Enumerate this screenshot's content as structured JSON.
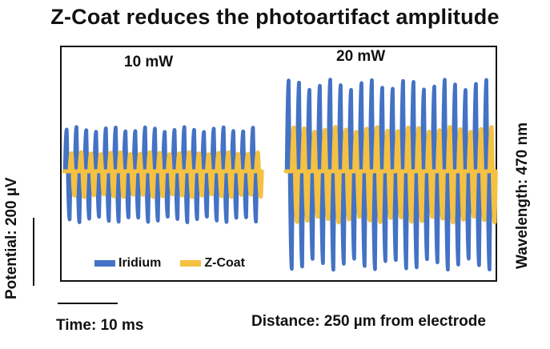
{
  "title": "Z-Coat reduces the photoartifact amplitude",
  "panels": {
    "left_label": "10 mW",
    "right_label": "20 mW"
  },
  "legend": {
    "iridium": "Iridium",
    "zcoat": "Z-Coat"
  },
  "scale_bars": {
    "potential": "Potential: 200 µV",
    "time": "Time: 10 ms"
  },
  "annotations": {
    "wavelength": "Wavelength: 470 nm",
    "distance": "Distance: 250 µm from electrode"
  },
  "colors": {
    "iridium": "#4472C4",
    "zcoat": "#F4C142"
  },
  "chart_data": {
    "type": "line",
    "title": "Z-Coat reduces the photoartifact amplitude",
    "xlabel": "",
    "ylabel": "",
    "grid": false,
    "legend_position": "bottom-left",
    "scale_bar_x": "10 ms",
    "scale_bar_y": "200 µV",
    "panels": [
      {
        "label": "10 mW",
        "cycles": 20,
        "series": [
          {
            "name": "Iridium",
            "peak_uV": 130,
            "trough_uV": -150
          },
          {
            "name": "Z-Coat",
            "peak_uV": 55,
            "trough_uV": -75
          }
        ]
      },
      {
        "label": "20 mW",
        "cycles": 20,
        "series": [
          {
            "name": "Iridium",
            "peak_uV": 270,
            "trough_uV": -290
          },
          {
            "name": "Z-Coat",
            "peak_uV": 130,
            "trough_uV": -150
          }
        ]
      }
    ]
  }
}
